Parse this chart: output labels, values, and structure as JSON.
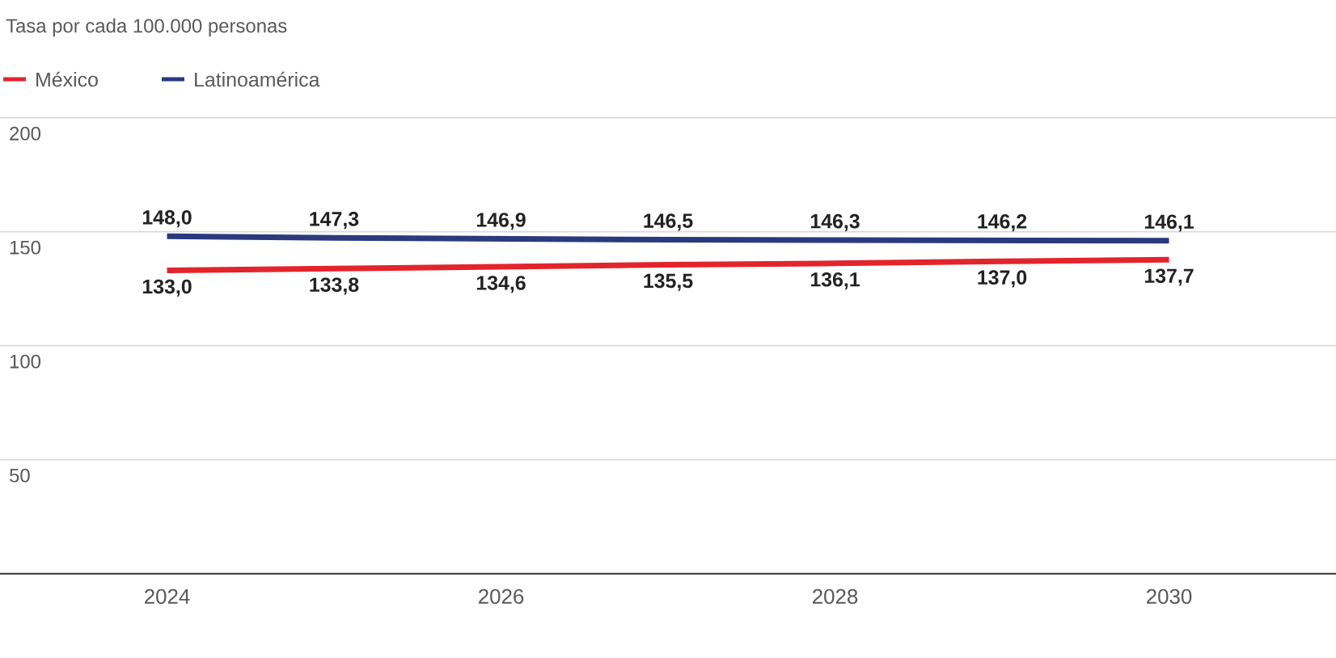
{
  "chart_data": {
    "type": "line",
    "subtitle": "Tasa por cada 100.000 personas",
    "x": [
      2024,
      2025,
      2026,
      2027,
      2028,
      2029,
      2030
    ],
    "series": [
      {
        "name": "México",
        "color": "#e3242b",
        "values": [
          133.0,
          133.8,
          134.6,
          135.5,
          136.1,
          137.0,
          137.7
        ],
        "value_labels": [
          "133,0",
          "133,8",
          "134,6",
          "135,5",
          "136,1",
          "137,0",
          "137,7"
        ]
      },
      {
        "name": "Latinoamérica",
        "color": "#2b3a7e",
        "values": [
          148.0,
          147.3,
          146.9,
          146.5,
          146.3,
          146.2,
          146.1
        ],
        "value_labels": [
          "148,0",
          "147,3",
          "146,9",
          "146,5",
          "146,3",
          "146,2",
          "146,1"
        ]
      }
    ],
    "xlim": [
      2023,
      2031
    ],
    "xticks": [
      2024,
      2026,
      2028,
      2030
    ],
    "ylim": [
      0,
      200
    ],
    "yticks": [
      50,
      100,
      150,
      200
    ],
    "grid": "y",
    "legend": "top left",
    "marker": "none",
    "line_style": "solid"
  }
}
